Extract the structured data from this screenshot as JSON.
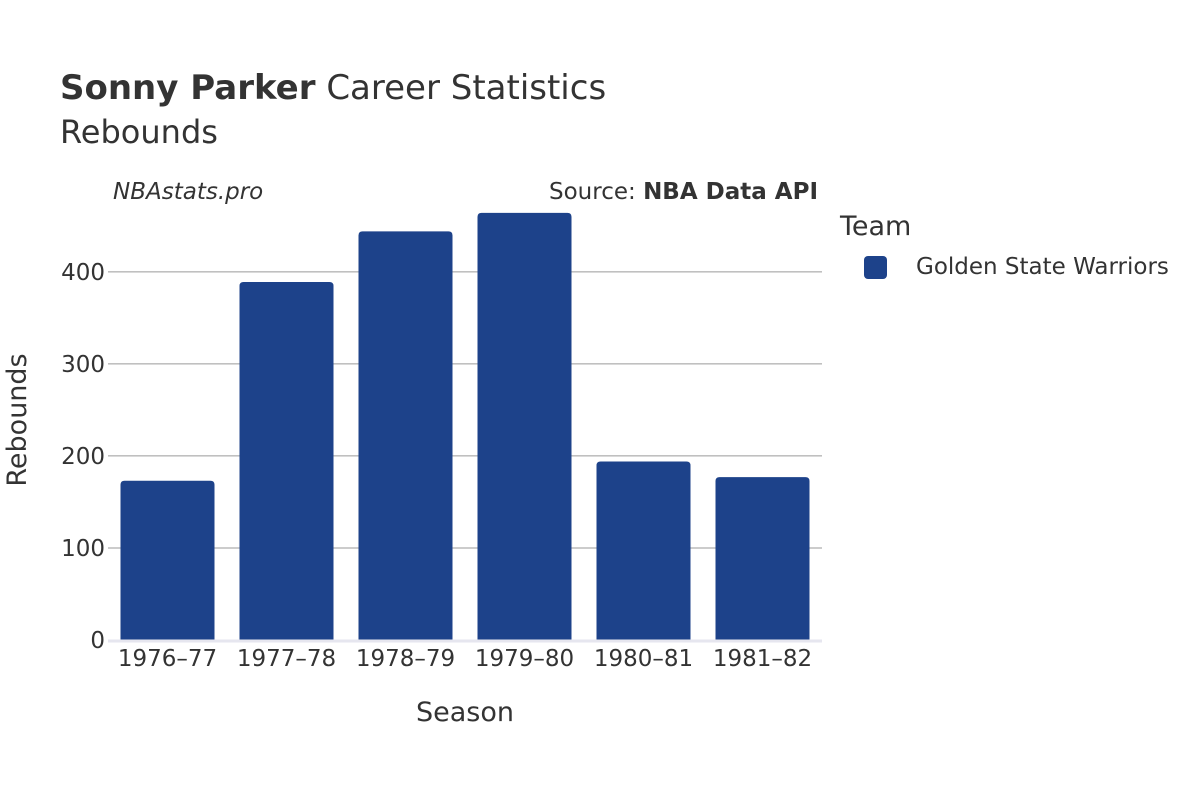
{
  "title": {
    "bold": "Sonny Parker",
    "rest": "Career Statistics"
  },
  "subtitle": "Rebounds",
  "credit": "NBAstats.pro",
  "source": {
    "prefix": "Source: ",
    "name": "NBA Data API"
  },
  "legend": {
    "title": "Team",
    "items": [
      {
        "label": "Golden State Warriors",
        "color": "#1d428a"
      }
    ]
  },
  "chart_data": {
    "type": "bar",
    "categories": [
      "1976–77",
      "1977–78",
      "1978–79",
      "1979–80",
      "1980–81",
      "1981–82"
    ],
    "series": [
      {
        "name": "Golden State Warriors",
        "values": [
          173,
          389,
          444,
          464,
          194,
          177
        ]
      }
    ],
    "xlabel": "Season",
    "ylabel": "Rebounds",
    "ylim": [
      0,
      490
    ],
    "yticks": [
      0,
      100,
      200,
      300,
      400
    ],
    "grid": true,
    "legend_position": "right"
  }
}
